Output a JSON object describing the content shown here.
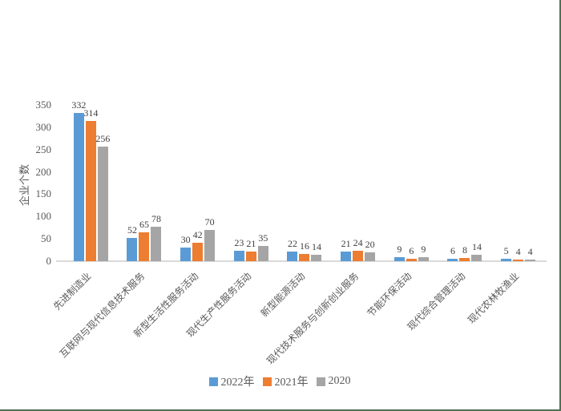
{
  "window": {
    "background": "#ffffff",
    "border_color": "#4f7155"
  },
  "chart_data": {
    "type": "bar",
    "title": "",
    "xlabel": "",
    "ylabel": "企业个数",
    "categories": [
      "先进制造业",
      "互联网与现代信息技术服务",
      "新型生活性服务活动",
      "现代生产性服务活动",
      "新型能源活动",
      "现代技术服务与创新创业服务",
      "节能环保活动",
      "现代综合管理活动",
      "现代农林牧渔业"
    ],
    "series": [
      {
        "name": "2022年",
        "color": "#5B9BD5",
        "values": [
          332,
          52,
          30,
          23,
          22,
          21,
          9,
          6,
          5
        ]
      },
      {
        "name": "2021年",
        "color": "#ED7D31",
        "values": [
          314,
          65,
          42,
          21,
          16,
          24,
          6,
          8,
          4
        ]
      },
      {
        "name": "2020",
        "color": "#A5A5A5",
        "values": [
          256,
          78,
          70,
          35,
          14,
          20,
          9,
          14,
          4
        ]
      }
    ],
    "ylim": [
      0,
      350
    ],
    "yticks": [
      0,
      50,
      100,
      150,
      200,
      250,
      300,
      350
    ],
    "grid": false,
    "legend_position": "bottom",
    "data_labels": true,
    "axis_line_color": "#D9D9D9",
    "axis_text_color": "#595959",
    "value_label_color": "#404040"
  }
}
